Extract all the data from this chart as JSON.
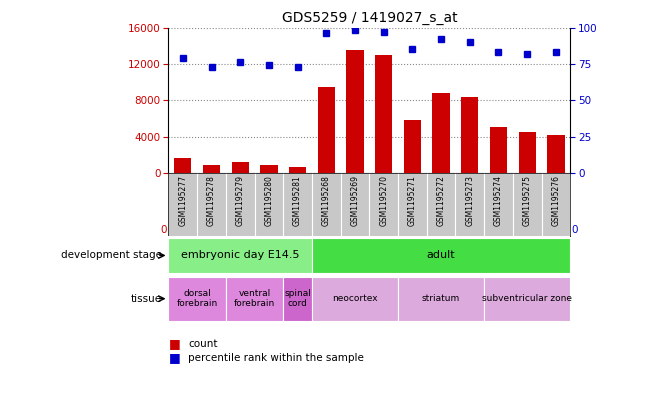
{
  "title": "GDS5259 / 1419027_s_at",
  "samples": [
    "GSM1195277",
    "GSM1195278",
    "GSM1195279",
    "GSM1195280",
    "GSM1195281",
    "GSM1195268",
    "GSM1195269",
    "GSM1195270",
    "GSM1195271",
    "GSM1195272",
    "GSM1195273",
    "GSM1195274",
    "GSM1195275",
    "GSM1195276"
  ],
  "counts": [
    1600,
    900,
    1200,
    900,
    700,
    9500,
    13500,
    13000,
    5800,
    8800,
    8300,
    5000,
    4500,
    4200
  ],
  "percentiles": [
    79,
    73,
    76,
    74,
    73,
    96,
    98,
    97,
    85,
    92,
    90,
    83,
    82,
    83
  ],
  "ylim_left": [
    0,
    16000
  ],
  "ylim_right": [
    0,
    100
  ],
  "yticks_left": [
    0,
    4000,
    8000,
    12000,
    16000
  ],
  "yticks_right": [
    0,
    25,
    50,
    75,
    100
  ],
  "bar_color": "#cc0000",
  "dot_color": "#0000cc",
  "dev_stage_groups": [
    {
      "label": "embryonic day E14.5",
      "start": 0,
      "end": 5,
      "color": "#88ee88"
    },
    {
      "label": "adult",
      "start": 5,
      "end": 14,
      "color": "#44dd44"
    }
  ],
  "tissue_groups": [
    {
      "label": "dorsal\nforebrain",
      "start": 0,
      "end": 2,
      "color": "#dd88dd"
    },
    {
      "label": "ventral\nforebrain",
      "start": 2,
      "end": 4,
      "color": "#dd88dd"
    },
    {
      "label": "spinal\ncord",
      "start": 4,
      "end": 5,
      "color": "#cc66cc"
    },
    {
      "label": "neocortex",
      "start": 5,
      "end": 8,
      "color": "#ddaadd"
    },
    {
      "label": "striatum",
      "start": 8,
      "end": 11,
      "color": "#ddaadd"
    },
    {
      "label": "subventricular zone",
      "start": 11,
      "end": 14,
      "color": "#ddaadd"
    }
  ],
  "background_color": "#ffffff",
  "grid_color": "#888888",
  "tick_area_color": "#c8c8c8"
}
